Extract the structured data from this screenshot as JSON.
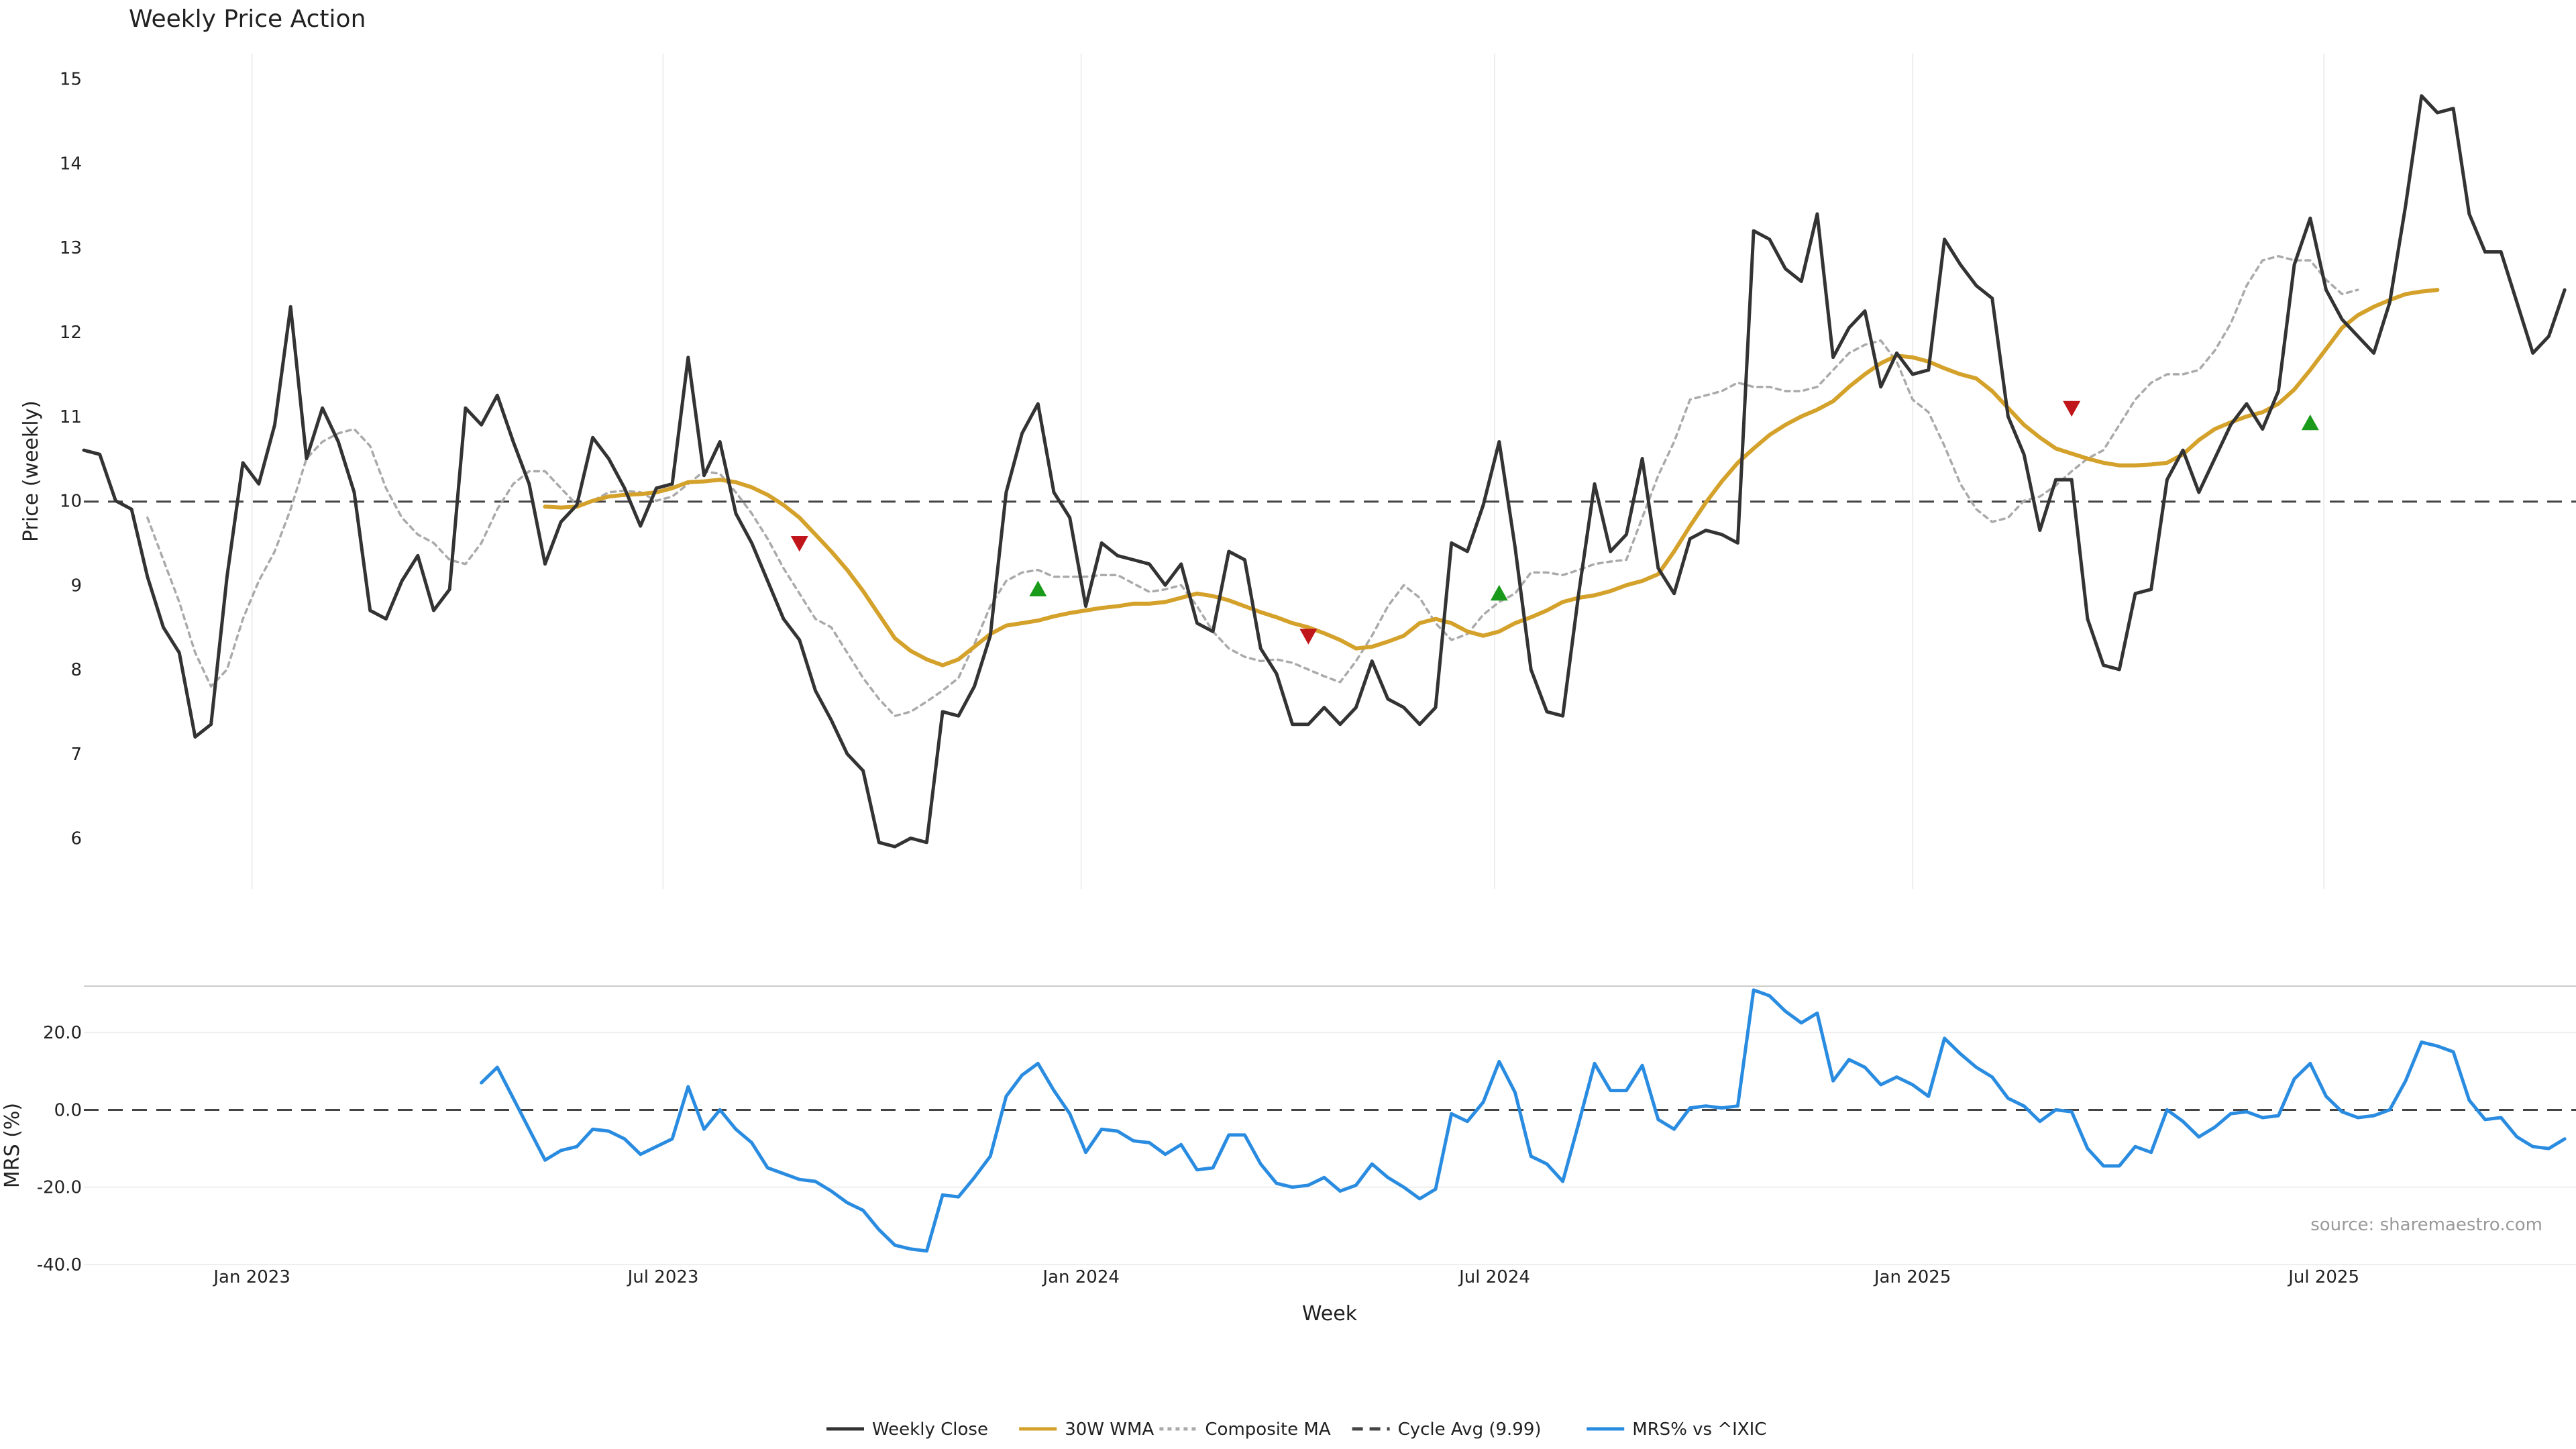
{
  "chart_data": [
    {
      "type": "line",
      "title": "Weekly Price Action",
      "ylabel": "Price (weekly)",
      "ylim": [
        5.4,
        15.3
      ],
      "yticks": [
        "6",
        "7",
        "8",
        "9",
        "10",
        "11",
        "12",
        "13",
        "14",
        "15"
      ],
      "xlim": [
        "2022-10-19",
        "2025-10-20"
      ],
      "xticks": [
        {
          "label": "Jan 2023",
          "date": "2023-01-01"
        },
        {
          "label": "Jul 2023",
          "date": "2023-07-01"
        },
        {
          "label": "Jan 2024",
          "date": "2024-01-01"
        },
        {
          "label": "Jul 2024",
          "date": "2024-07-01"
        },
        {
          "label": "Jan 2025",
          "date": "2025-01-01"
        },
        {
          "label": "Jul 2025",
          "date": "2025-07-01"
        }
      ],
      "week_start": "2022-10-19",
      "series": [
        {
          "name": "Weekly Close",
          "color": "#333333",
          "style": "solid",
          "values": [
            10.6,
            10.55,
            10.0,
            9.9,
            9.1,
            8.5,
            8.2,
            7.2,
            7.35,
            9.1,
            10.45,
            10.2,
            10.9,
            12.3,
            10.5,
            11.1,
            10.7,
            10.1,
            8.7,
            8.6,
            9.05,
            9.35,
            8.7,
            8.95,
            11.1,
            10.9,
            11.25,
            10.7,
            10.2,
            9.25,
            9.75,
            9.95,
            10.75,
            10.5,
            10.15,
            9.7,
            10.15,
            10.2,
            11.7,
            10.3,
            10.7,
            9.85,
            9.5,
            9.05,
            8.6,
            8.35,
            7.75,
            7.4,
            7.0,
            6.8,
            5.95,
            5.9,
            6.0,
            5.95,
            7.5,
            7.45,
            7.8,
            8.4,
            10.1,
            10.8,
            11.15,
            10.1,
            9.8,
            8.75,
            9.5,
            9.35,
            9.3,
            9.25,
            9.0,
            9.25,
            8.55,
            8.45,
            9.4,
            9.3,
            8.25,
            7.95,
            7.35,
            7.35,
            7.55,
            7.35,
            7.55,
            8.1,
            7.65,
            7.55,
            7.35,
            7.55,
            9.5,
            9.4,
            9.95,
            10.7,
            9.45,
            8.0,
            7.5,
            7.45,
            8.9,
            10.2,
            9.4,
            9.6,
            10.5,
            9.2,
            8.9,
            9.55,
            9.65,
            9.6,
            9.5,
            13.2,
            13.1,
            12.75,
            12.6,
            13.4,
            11.7,
            12.05,
            12.25,
            11.35,
            11.75,
            11.5,
            11.55,
            13.1,
            12.8,
            12.55,
            12.4,
            11.0,
            10.55,
            9.65,
            10.25,
            10.25,
            8.6,
            8.05,
            8.0,
            8.9,
            8.95,
            10.25,
            10.6,
            10.1,
            10.5,
            10.9,
            11.15,
            10.85,
            11.3,
            12.8,
            13.35,
            12.5,
            12.15,
            11.95,
            11.75,
            12.35,
            13.5,
            14.8,
            14.6,
            14.65,
            13.4,
            12.95,
            12.95,
            12.35,
            11.75,
            11.95,
            12.5
          ]
        },
        {
          "name": "30W WMA",
          "color": "#d4a12a",
          "style": "solid",
          "start_index": 29,
          "values": [
            9.93,
            9.92,
            9.93,
            10.0,
            10.05,
            10.07,
            10.08,
            10.1,
            10.15,
            10.22,
            10.23,
            10.25,
            10.22,
            10.16,
            10.07,
            9.95,
            9.8,
            9.6,
            9.4,
            9.18,
            8.93,
            8.65,
            8.37,
            8.22,
            8.12,
            8.05,
            8.12,
            8.27,
            8.42,
            8.52,
            8.55,
            8.58,
            8.63,
            8.67,
            8.7,
            8.73,
            8.75,
            8.78,
            8.78,
            8.8,
            8.85,
            8.9,
            8.87,
            8.82,
            8.75,
            8.68,
            8.62,
            8.55,
            8.5,
            8.43,
            8.35,
            8.25,
            8.27,
            8.33,
            8.4,
            8.55,
            8.6,
            8.55,
            8.45,
            8.4,
            8.45,
            8.55,
            8.62,
            8.7,
            8.8,
            8.85,
            8.88,
            8.93,
            9.0,
            9.05,
            9.13,
            9.4,
            9.7,
            9.98,
            10.23,
            10.45,
            10.62,
            10.78,
            10.9,
            11.0,
            11.08,
            11.18,
            11.35,
            11.5,
            11.63,
            11.72,
            11.7,
            11.65,
            11.57,
            11.5,
            11.45,
            11.3,
            11.1,
            10.9,
            10.75,
            10.62,
            10.56,
            10.5,
            10.45,
            10.42,
            10.42,
            10.43,
            10.45,
            10.55,
            10.72,
            10.85,
            10.93,
            11.0,
            11.05,
            11.15,
            11.32,
            11.55,
            11.8,
            12.05,
            12.2,
            12.3,
            12.38,
            12.45,
            12.48,
            12.5
          ]
        },
        {
          "name": "Composite MA",
          "color": "#aaaaaa",
          "style": "dotted",
          "start_index": 4,
          "values": [
            9.8,
            9.3,
            8.8,
            8.2,
            7.8,
            8.0,
            8.6,
            9.05,
            9.4,
            9.9,
            10.5,
            10.7,
            10.8,
            10.85,
            10.65,
            10.15,
            9.8,
            9.6,
            9.5,
            9.3,
            9.25,
            9.5,
            9.9,
            10.2,
            10.35,
            10.35,
            10.15,
            9.95,
            10.0,
            10.1,
            10.12,
            10.1,
            10.0,
            10.05,
            10.2,
            10.35,
            10.32,
            10.1,
            9.85,
            9.55,
            9.2,
            8.9,
            8.6,
            8.5,
            8.2,
            7.9,
            7.65,
            7.45,
            7.5,
            7.62,
            7.75,
            7.9,
            8.3,
            8.75,
            9.05,
            9.15,
            9.18,
            9.1,
            9.1,
            9.1,
            9.12,
            9.12,
            9.02,
            8.92,
            8.95,
            9.0,
            8.75,
            8.45,
            8.25,
            8.15,
            8.1,
            8.12,
            8.08,
            8.0,
            7.92,
            7.85,
            8.1,
            8.4,
            8.75,
            9.0,
            8.85,
            8.55,
            8.35,
            8.42,
            8.65,
            8.8,
            8.9,
            9.15,
            9.15,
            9.12,
            9.18,
            9.25,
            9.28,
            9.3,
            9.8,
            10.3,
            10.7,
            11.2,
            11.25,
            11.3,
            11.4,
            11.35,
            11.35,
            11.3,
            11.3,
            11.35,
            11.55,
            11.75,
            11.85,
            11.9,
            11.65,
            11.2,
            11.05,
            10.65,
            10.2,
            9.9,
            9.75,
            9.8,
            10.0,
            10.05,
            10.18,
            10.35,
            10.5,
            10.6,
            10.9,
            11.2,
            11.4,
            11.5,
            11.5,
            11.55,
            11.78,
            12.1,
            12.55,
            12.85,
            12.9,
            12.85,
            12.85,
            12.62,
            12.45,
            12.5
          ]
        },
        {
          "name": "Cycle Avg (9.99)",
          "color": "#444444",
          "style": "dashed",
          "value": 9.99
        }
      ],
      "signals": [
        {
          "type": "sell",
          "week": 45,
          "value": 9.5,
          "color": "#c0151a"
        },
        {
          "type": "buy",
          "week": 60,
          "value": 8.95,
          "color": "#1a9a1a"
        },
        {
          "type": "sell",
          "week": 77,
          "value": 8.4,
          "color": "#c0151a"
        },
        {
          "type": "buy",
          "week": 89,
          "value": 8.9,
          "color": "#1a9a1a"
        },
        {
          "type": "sell",
          "week": 125,
          "value": 11.1,
          "color": "#c0151a"
        },
        {
          "type": "buy",
          "week": 140,
          "value": 10.92,
          "color": "#1a9a1a"
        }
      ],
      "grid": true
    },
    {
      "type": "line",
      "ylabel": "MRS (%)",
      "xlabel": "Week",
      "ylim": [
        -40,
        32
      ],
      "yticks": [
        "-40.0",
        "-20.0",
        "0.0",
        "20.0"
      ],
      "series": [
        {
          "name": "MRS% vs ^IXIC",
          "color": "#2a8ce0",
          "style": "solid",
          "start_index": 25,
          "values": [
            7,
            11,
            3,
            -5,
            -13,
            -10.5,
            -9.5,
            -5,
            -5.5,
            -7.5,
            -11.5,
            -9.5,
            -7.5,
            6,
            -5,
            0,
            -5,
            -8.5,
            -15,
            -16.5,
            -18,
            -18.5,
            -21,
            -24,
            -26,
            -31,
            -35,
            -36,
            -36.5,
            -22,
            -22.5,
            -17.5,
            -12,
            3.5,
            9,
            12,
            5,
            -1,
            -11,
            -5,
            -5.5,
            -8,
            -8.5,
            -11.5,
            -9,
            -15.5,
            -15,
            -6.5,
            -6.5,
            -14,
            -19,
            -20,
            -19.5,
            -17.5,
            -21,
            -19.5,
            -14,
            -17.5,
            -20,
            -23,
            -20.5,
            -1,
            -3,
            2,
            12.5,
            4.5,
            -12,
            -14,
            -18.5,
            -3.5,
            12,
            5,
            5,
            11.5,
            -2.5,
            -5,
            0.5,
            1,
            0.5,
            1,
            31,
            29.5,
            25.5,
            22.5,
            25,
            7.5,
            13,
            11,
            6.5,
            8.5,
            6.5,
            3.5,
            18.5,
            14.5,
            11,
            8.5,
            3,
            1,
            -3,
            0,
            -0.5,
            -10,
            -14.5,
            -14.5,
            -9.5,
            -11,
            0,
            -3,
            -7,
            -4.5,
            -1,
            -0.5,
            -2,
            -1.5,
            8,
            12,
            3.5,
            -0.5,
            -2,
            -1.5,
            0,
            7.5,
            17.5,
            16.5,
            15,
            2.5,
            -2.5,
            -2,
            -7,
            -9.5,
            -10,
            -7.5
          ]
        },
        {
          "name": "",
          "color": "#444444",
          "style": "dashed",
          "value": 0
        }
      ],
      "source_label": "source: sharemaestro.com",
      "grid": true
    }
  ],
  "legend": {
    "placement": "bottom-center",
    "items": [
      {
        "label": "Weekly Close",
        "color": "#333333",
        "style": "solid"
      },
      {
        "label": "30W WMA",
        "color": "#d4a12a",
        "style": "solid"
      },
      {
        "label": "Composite MA",
        "color": "#aaaaaa",
        "style": "dotted"
      },
      {
        "label": "Cycle Avg (9.99)",
        "color": "#444444",
        "style": "dashed"
      },
      {
        "label": "MRS% vs ^IXIC",
        "color": "#2a8ce0",
        "style": "solid"
      }
    ]
  }
}
